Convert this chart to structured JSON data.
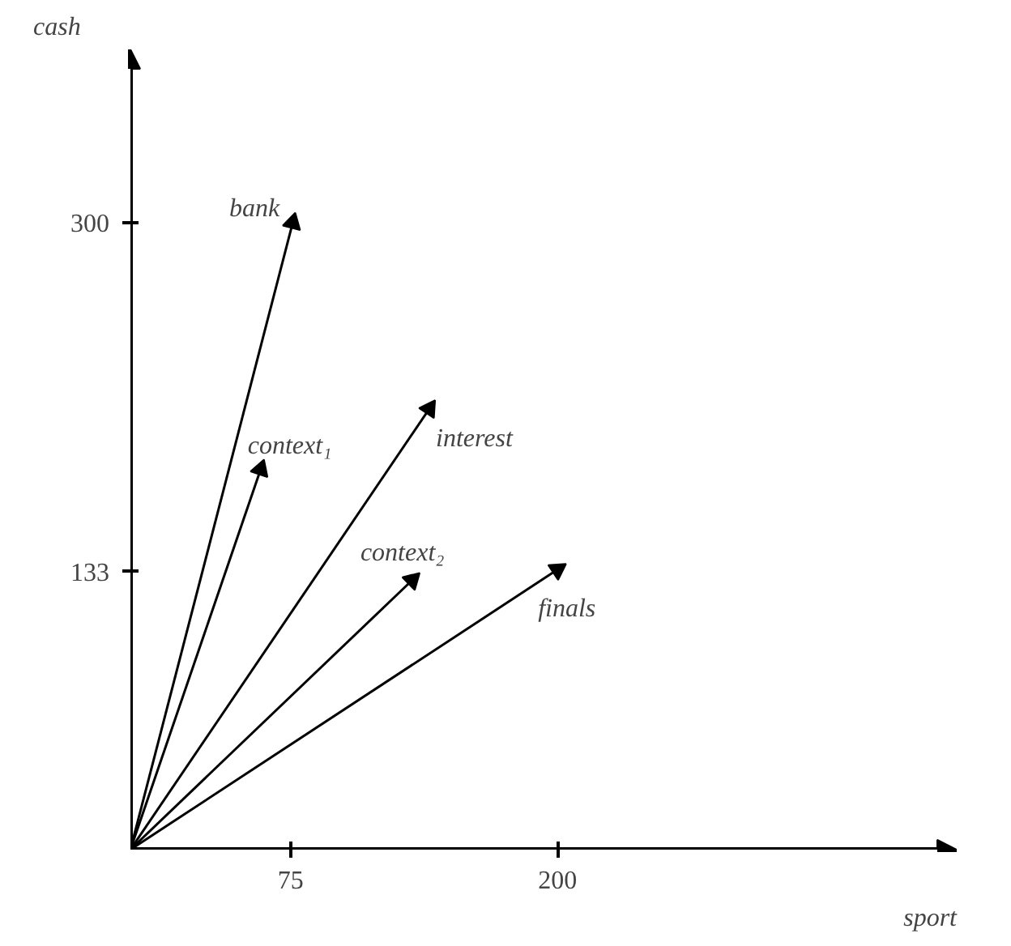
{
  "chart_data": {
    "type": "line",
    "xlabel": "sport",
    "ylabel": "cash",
    "xlim": [
      0,
      387
    ],
    "ylim": [
      0,
      383
    ],
    "xticks": [
      75,
      200
    ],
    "yticks": [
      133,
      300
    ],
    "grid": false,
    "marker": "triangle",
    "line_style": "solid",
    "series": [
      {
        "name": "bank",
        "color": "#000000",
        "x": [
          0,
          76
        ],
        "values": [
          0,
          300
        ]
      },
      {
        "name": "context₁",
        "color": "#000000",
        "x": [
          0,
          61
        ],
        "values": [
          0,
          182
        ]
      },
      {
        "name": "interest",
        "color": "#000000",
        "x": [
          0,
          140
        ],
        "values": [
          0,
          211
        ]
      },
      {
        "name": "context₂",
        "color": "#000000",
        "x": [
          0,
          132
        ],
        "values": [
          0,
          129
        ]
      },
      {
        "name": "finals",
        "color": "#000000",
        "x": [
          0,
          200
        ],
        "values": [
          0,
          134
        ]
      }
    ]
  }
}
